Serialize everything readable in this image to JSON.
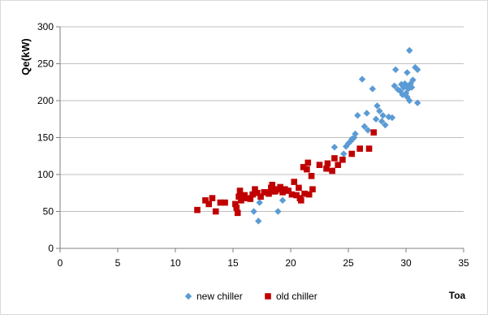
{
  "chart_data": {
    "type": "scatter",
    "title": "",
    "xlabel": "Toa",
    "ylabel": "Qe(kW)",
    "xlim": [
      0,
      35
    ],
    "ylim": [
      0,
      300
    ],
    "x_ticks": [
      0,
      5,
      10,
      15,
      20,
      25,
      30,
      35
    ],
    "y_ticks": [
      0,
      50,
      100,
      150,
      200,
      250,
      300
    ],
    "grid": "horizontal",
    "legend_position": "bottom",
    "series": [
      {
        "name": "new chiller",
        "color": "#5b9bd5",
        "marker": "diamond",
        "points": [
          [
            16.8,
            50
          ],
          [
            17.2,
            37
          ],
          [
            17.3,
            62
          ],
          [
            18.9,
            50
          ],
          [
            19.3,
            65
          ],
          [
            23.8,
            137
          ],
          [
            24.6,
            128
          ],
          [
            24.8,
            138
          ],
          [
            25.0,
            142
          ],
          [
            25.2,
            145
          ],
          [
            25.3,
            148
          ],
          [
            25.5,
            150
          ],
          [
            25.6,
            155
          ],
          [
            25.8,
            180
          ],
          [
            26.2,
            229
          ],
          [
            26.4,
            165
          ],
          [
            26.6,
            183
          ],
          [
            26.7,
            160
          ],
          [
            27.1,
            216
          ],
          [
            27.4,
            175
          ],
          [
            27.5,
            193
          ],
          [
            27.7,
            186
          ],
          [
            27.9,
            172
          ],
          [
            28.0,
            180
          ],
          [
            28.2,
            167
          ],
          [
            28.5,
            178
          ],
          [
            28.8,
            177
          ],
          [
            29.0,
            220
          ],
          [
            29.1,
            242
          ],
          [
            29.3,
            215
          ],
          [
            29.5,
            213
          ],
          [
            29.6,
            222
          ],
          [
            29.7,
            208
          ],
          [
            29.8,
            218
          ],
          [
            29.9,
            223
          ],
          [
            30.0,
            210
          ],
          [
            30.1,
            205
          ],
          [
            30.1,
            238
          ],
          [
            30.2,
            216
          ],
          [
            30.3,
            200
          ],
          [
            30.3,
            268
          ],
          [
            30.4,
            223
          ],
          [
            30.5,
            218
          ],
          [
            30.6,
            228
          ],
          [
            30.8,
            245
          ],
          [
            31.0,
            242
          ],
          [
            31.0,
            197
          ],
          [
            30.2,
            220
          ]
        ]
      },
      {
        "name": "old chiller",
        "color": "#c00000",
        "marker": "square",
        "points": [
          [
            11.9,
            52
          ],
          [
            12.6,
            65
          ],
          [
            12.9,
            60
          ],
          [
            13.2,
            68
          ],
          [
            13.5,
            50
          ],
          [
            13.9,
            62
          ],
          [
            14.3,
            62
          ],
          [
            15.2,
            60
          ],
          [
            15.3,
            55
          ],
          [
            15.4,
            48
          ],
          [
            15.5,
            70
          ],
          [
            15.6,
            78
          ],
          [
            15.7,
            65
          ],
          [
            16.0,
            72
          ],
          [
            16.2,
            68
          ],
          [
            16.5,
            67
          ],
          [
            16.7,
            73
          ],
          [
            16.9,
            80
          ],
          [
            17.1,
            75
          ],
          [
            17.4,
            70
          ],
          [
            17.7,
            76
          ],
          [
            17.9,
            76
          ],
          [
            18.1,
            74
          ],
          [
            18.3,
            82
          ],
          [
            18.4,
            86
          ],
          [
            18.6,
            77
          ],
          [
            18.7,
            78
          ],
          [
            18.9,
            80
          ],
          [
            19.1,
            83
          ],
          [
            19.3,
            76
          ],
          [
            19.5,
            80
          ],
          [
            19.8,
            78
          ],
          [
            20.1,
            73
          ],
          [
            20.3,
            90
          ],
          [
            20.5,
            72
          ],
          [
            20.7,
            82
          ],
          [
            20.8,
            68
          ],
          [
            20.9,
            65
          ],
          [
            21.1,
            110
          ],
          [
            21.2,
            74
          ],
          [
            21.4,
            107
          ],
          [
            21.5,
            116
          ],
          [
            21.6,
            73
          ],
          [
            21.8,
            98
          ],
          [
            21.9,
            80
          ],
          [
            22.5,
            113
          ],
          [
            23.1,
            108
          ],
          [
            23.2,
            115
          ],
          [
            23.6,
            105
          ],
          [
            23.8,
            122
          ],
          [
            24.1,
            113
          ],
          [
            24.5,
            120
          ],
          [
            25.3,
            128
          ],
          [
            26.0,
            135
          ],
          [
            26.8,
            135
          ],
          [
            27.2,
            157
          ]
        ]
      }
    ]
  }
}
